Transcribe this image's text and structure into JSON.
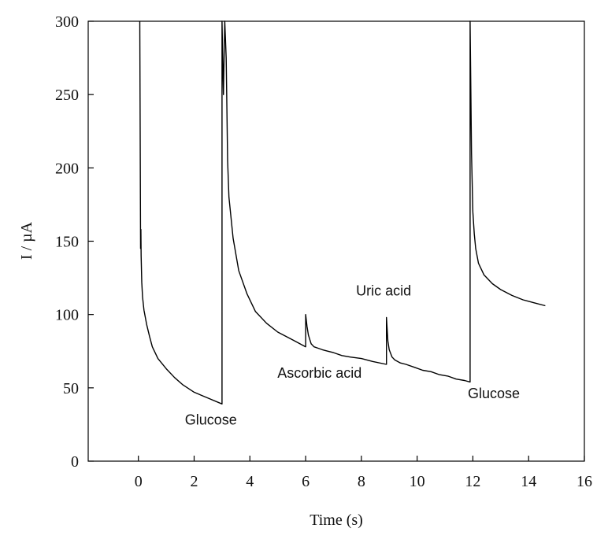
{
  "chart_data": {
    "type": "line",
    "title": "",
    "xlabel": "Time (s)",
    "ylabel": "I / µA",
    "xlim": [
      -1.8,
      16
    ],
    "ylim": [
      0,
      300
    ],
    "xticks": [
      0,
      2,
      4,
      6,
      8,
      10,
      12,
      14,
      16
    ],
    "yticks": [
      0,
      50,
      100,
      150,
      200,
      250,
      300
    ],
    "grid": false,
    "legend": "none",
    "line_color": "#000000",
    "series": [
      {
        "x": [
          0.05,
          0.08,
          0.09,
          0.1,
          0.12,
          0.15,
          0.2,
          0.3,
          0.4,
          0.5,
          0.7,
          1.0,
          1.3,
          1.6,
          2.0,
          2.5,
          3.0,
          3.0,
          3.05,
          3.1,
          3.15,
          3.2,
          3.25,
          3.4,
          3.6,
          3.9,
          4.2,
          4.6,
          5.0,
          5.5,
          6.0,
          6.0,
          6.05,
          6.1,
          6.2,
          6.3,
          6.45,
          6.6,
          6.8,
          7.0,
          7.3,
          7.6,
          8.0,
          8.4,
          8.9,
          8.9,
          8.95,
          9.0,
          9.1,
          9.2,
          9.4,
          9.6,
          9.9,
          10.2,
          10.5,
          10.8,
          11.1,
          11.4,
          11.7,
          11.9,
          11.9,
          11.95,
          12.0,
          12.05,
          12.1,
          12.2,
          12.4,
          12.7,
          13.0,
          13.4,
          13.8,
          14.2,
          14.6
        ],
        "y": [
          300,
          145,
          158,
          140,
          122,
          112,
          103,
          93,
          85,
          78,
          70,
          63,
          57,
          52,
          47,
          43,
          39,
          300,
          250,
          300,
          275,
          205,
          180,
          152,
          130,
          114,
          102,
          94,
          88,
          83,
          78,
          100,
          92,
          86,
          80,
          78,
          77,
          76,
          75,
          74,
          72,
          71,
          70,
          68,
          66,
          98,
          82,
          76,
          71,
          69,
          67,
          66,
          64,
          62,
          61,
          59,
          58,
          56,
          55,
          54,
          300,
          210,
          170,
          155,
          145,
          135,
          127,
          121,
          117,
          113,
          110,
          108,
          106
        ]
      }
    ],
    "annotations": [
      {
        "text": "Glucose",
        "x": 2.6,
        "y": 25
      },
      {
        "text": "Ascorbic acid",
        "x": 6.5,
        "y": 57
      },
      {
        "text": "Uric acid",
        "x": 8.8,
        "y": 113
      },
      {
        "text": "Glucose",
        "x": 12.75,
        "y": 43
      }
    ]
  }
}
